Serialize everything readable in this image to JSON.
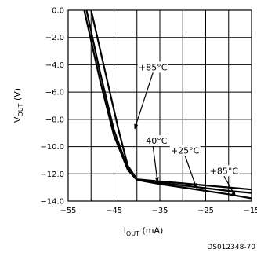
{
  "chart_data": {
    "type": "line",
    "x_axis": {
      "label_main": "I",
      "label_sub": "OUT",
      "label_unit": " (mA)",
      "range": [
        -55,
        -15
      ],
      "ticks": [
        -55,
        -45,
        -35,
        -25,
        -15
      ],
      "tick_labels": [
        "−55",
        "−45",
        "−35",
        "−25",
        "−15"
      ],
      "minor_step": 5
    },
    "y_axis": {
      "label_main": "V",
      "label_sub": "OUT",
      "label_unit": " (V)",
      "range": [
        -14,
        0
      ],
      "ticks": [
        0,
        -2,
        -4,
        -6,
        -8,
        -10,
        -12,
        -14
      ],
      "tick_labels": [
        "0.0",
        "−2.0",
        "−4.0",
        "−6.0",
        "−8.0",
        "−10.0",
        "−12.0",
        "−14.0"
      ]
    },
    "grid": true,
    "series": [
      {
        "name": "+85°C",
        "x": [
          -51.5,
          -48,
          -45,
          -42,
          -40,
          -35,
          -30,
          -25,
          -20,
          -15
        ],
        "y": [
          0,
          -5.2,
          -9.2,
          -11.7,
          -12.45,
          -12.75,
          -13.0,
          -13.25,
          -13.5,
          -13.8
        ]
      },
      {
        "name": "+25°C",
        "x": [
          -51.0,
          -48,
          -45,
          -42,
          -40,
          -35,
          -30,
          -25,
          -20,
          -15
        ],
        "y": [
          0,
          -4.6,
          -8.8,
          -11.6,
          -12.45,
          -12.65,
          -12.85,
          -13.05,
          -13.25,
          -13.4
        ]
      },
      {
        "name": "−40°C",
        "x": [
          -50.0,
          -47,
          -44,
          -42,
          -40,
          -35,
          -30,
          -25,
          -20,
          -15
        ],
        "y": [
          0,
          -4.4,
          -8.8,
          -11.4,
          -12.4,
          -12.55,
          -12.7,
          -12.85,
          -13.0,
          -13.15
        ]
      }
    ],
    "annotations": [
      {
        "text": "+85°C",
        "x": -36.5,
        "y": -4.4,
        "arrow_to": [
          -40.5,
          -8.7
        ]
      },
      {
        "text": "−40°C",
        "x": -36.5,
        "y": -9.8,
        "arrow_to": [
          -35.5,
          -12.6
        ]
      },
      {
        "text": "+25°C",
        "x": -29.5,
        "y": -10.5,
        "arrow_to": [
          -27.0,
          -13.05
        ]
      },
      {
        "text": "+85°C",
        "x": -21.0,
        "y": -12.0,
        "arrow_to": [
          -18.5,
          -13.65
        ]
      }
    ],
    "footnote": "DS012348-70"
  }
}
